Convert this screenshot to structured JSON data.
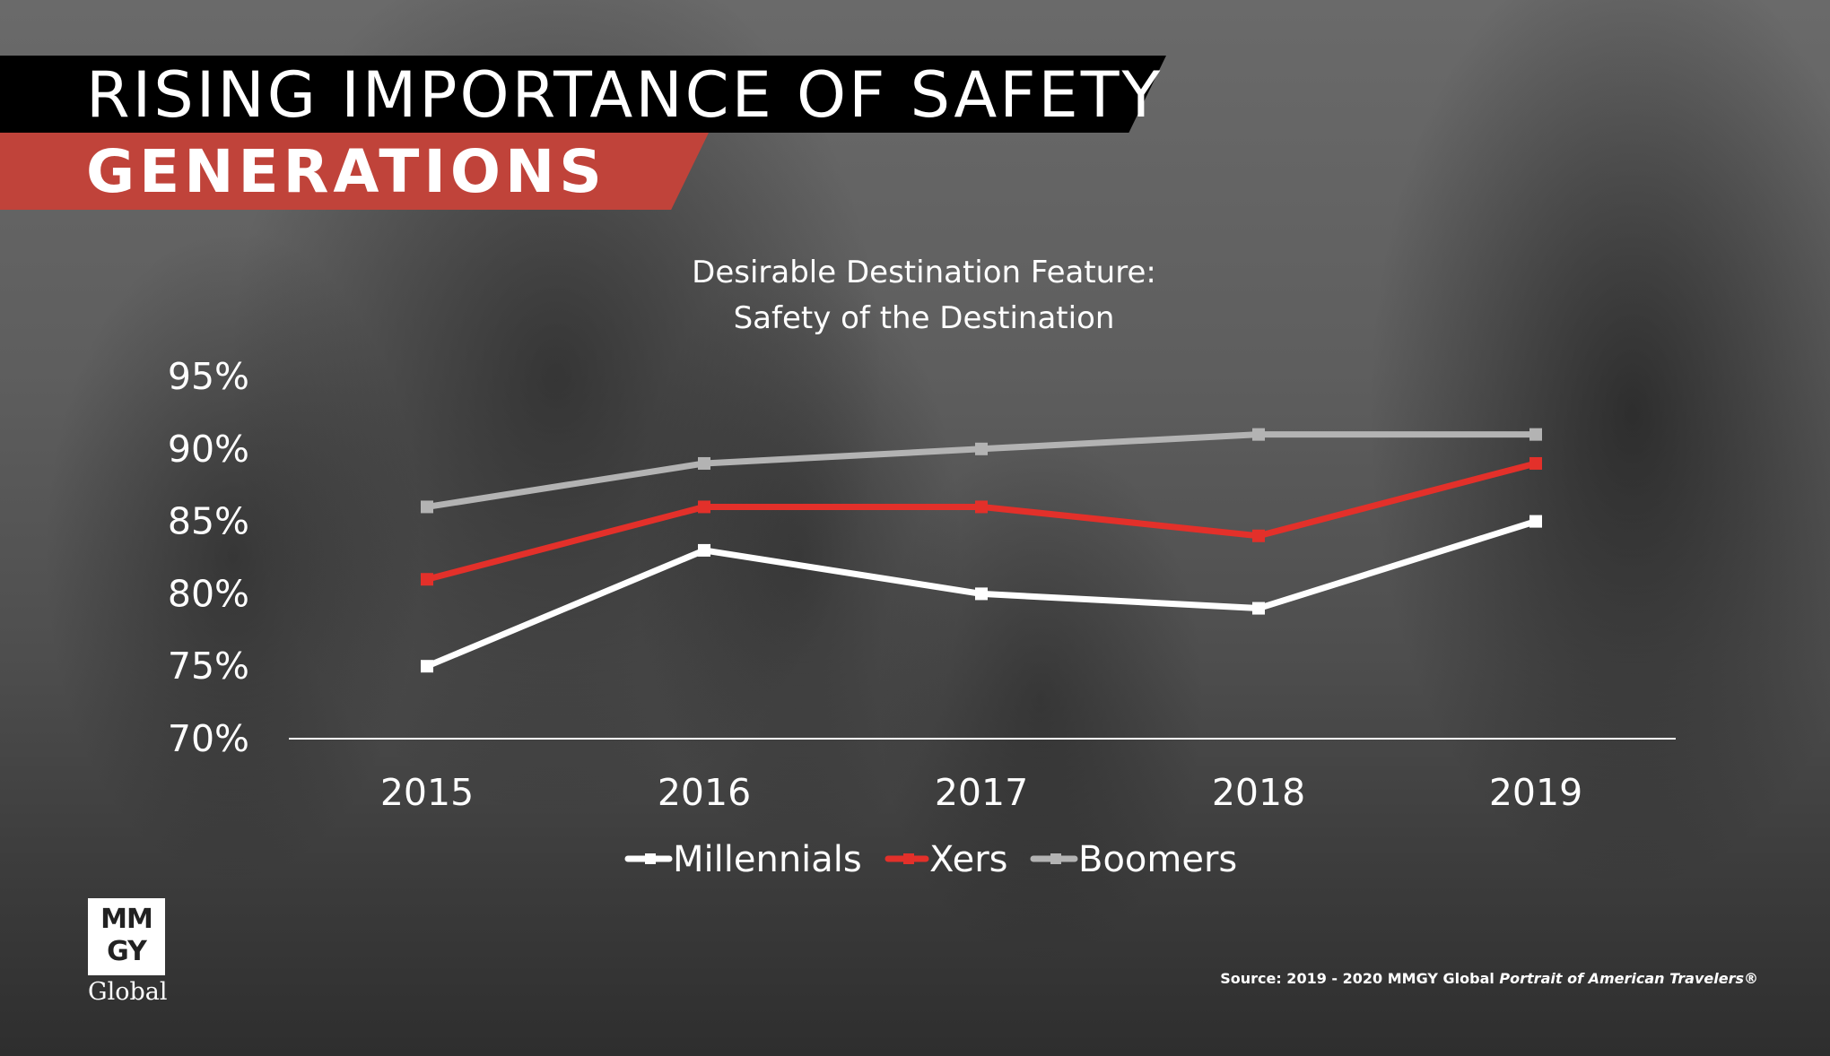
{
  "header": {
    "title": "RISING IMPORTANCE OF SAFETY",
    "subtitle": "GENERATIONS"
  },
  "chart_data": {
    "type": "line",
    "title_lines": [
      "Desirable Destination Feature:",
      "Safety of the Destination"
    ],
    "categories": [
      "2015",
      "2016",
      "2017",
      "2018",
      "2019"
    ],
    "ylim": [
      70,
      95
    ],
    "yticks": [
      70,
      75,
      80,
      85,
      90,
      95
    ],
    "ytick_labels": [
      "70%",
      "75%",
      "80%",
      "85%",
      "90%",
      "95%"
    ],
    "grid": false,
    "legend_position": "bottom",
    "series": [
      {
        "name": "Millennials",
        "values": [
          75,
          83,
          80,
          79,
          85
        ],
        "color": "#ffffff"
      },
      {
        "name": "Xers",
        "values": [
          81,
          86,
          86,
          84,
          89
        ],
        "color": "#e3302a"
      },
      {
        "name": "Boomers",
        "values": [
          86,
          89,
          90,
          91,
          91
        ],
        "color": "#b3b3b3"
      }
    ]
  },
  "logo": {
    "line1": "MM",
    "line2": "GY",
    "wordmark": "Global"
  },
  "source": {
    "prefix": "Source: 2019 - 2020 MMGY Global ",
    "italic": "Portrait of American Travelers®"
  }
}
